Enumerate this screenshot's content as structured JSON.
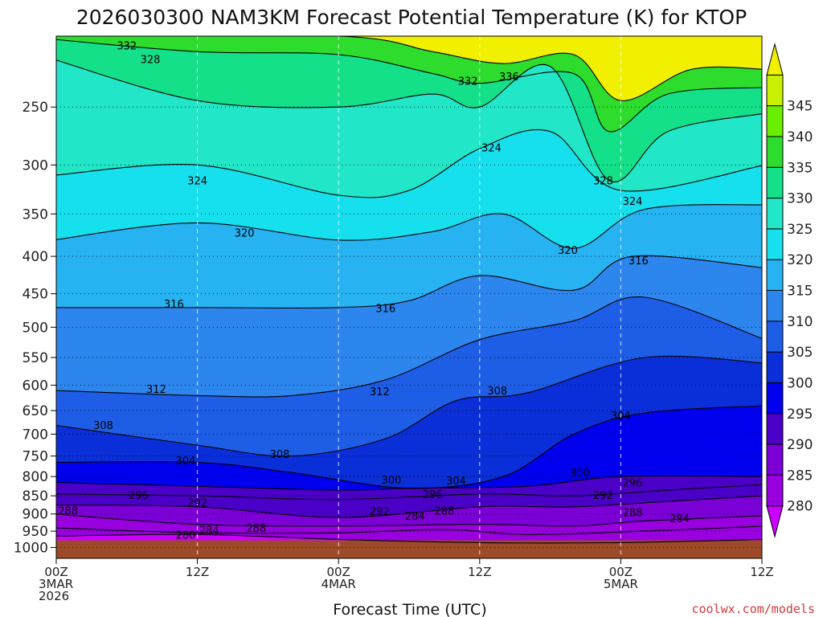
{
  "chart_data": {
    "type": "contour",
    "title": "2026030300 NAM3KM Forecast Potential Temperature (K) for KTOP",
    "xlabel": "Forecast Time (UTC)",
    "ylabel": "",
    "units": "K",
    "x_hours_range": [
      0,
      60
    ],
    "x_ticks": [
      {
        "hour": 0,
        "lines": [
          "00Z",
          "3MAR",
          "2026"
        ]
      },
      {
        "hour": 12,
        "lines": [
          "12Z"
        ]
      },
      {
        "hour": 24,
        "lines": [
          "00Z",
          "4MAR"
        ]
      },
      {
        "hour": 36,
        "lines": [
          "12Z"
        ]
      },
      {
        "hour": 48,
        "lines": [
          "00Z",
          "5MAR"
        ]
      },
      {
        "hour": 60,
        "lines": [
          "12Z"
        ]
      }
    ],
    "y_axis": {
      "variable": "pressure (hPa)",
      "scale": "log",
      "range": [
        1035,
        200
      ],
      "ticks": [
        250,
        300,
        350,
        400,
        450,
        500,
        550,
        600,
        650,
        700,
        750,
        800,
        850,
        900,
        950,
        1000
      ]
    },
    "surface_pressure_hPa": 978,
    "colorbar": {
      "levels": [
        280,
        285,
        290,
        295,
        300,
        305,
        310,
        315,
        320,
        325,
        330,
        335,
        340,
        345
      ],
      "colors": [
        "#cc00ff",
        "#9900e0",
        "#7a00d6",
        "#4b00c8",
        "#0000ee",
        "#0a2ed8",
        "#1e5ee6",
        "#2d86ee",
        "#27b2f2",
        "#16e0ee",
        "#22e6c8",
        "#14e08a",
        "#2ddc2d",
        "#6aee00",
        "#c8f000",
        "#f0f000"
      ]
    },
    "contour_interval": 4,
    "contour_levels": [
      280,
      284,
      288,
      292,
      296,
      300,
      304,
      308,
      312,
      316,
      320,
      324,
      328,
      332,
      336
    ],
    "series": [
      {
        "name": "280K",
        "values": [
          [
            0,
            965
          ],
          [
            12,
            960
          ],
          [
            24,
            975
          ],
          [
            36,
            985
          ],
          [
            48,
            985
          ],
          [
            60,
            975
          ]
        ]
      },
      {
        "name": "284K",
        "values": [
          [
            0,
            940
          ],
          [
            12,
            955
          ],
          [
            24,
            955
          ],
          [
            33,
            945
          ],
          [
            40,
            960
          ],
          [
            50,
            950
          ],
          [
            60,
            935
          ]
        ]
      },
      {
        "name": "288K",
        "values": [
          [
            0,
            900
          ],
          [
            12,
            930
          ],
          [
            24,
            935
          ],
          [
            36,
            930
          ],
          [
            44,
            935
          ],
          [
            50,
            920
          ],
          [
            60,
            905
          ]
        ]
      },
      {
        "name": "292K",
        "values": [
          [
            0,
            875
          ],
          [
            12,
            880
          ],
          [
            24,
            910
          ],
          [
            36,
            880
          ],
          [
            44,
            880
          ],
          [
            52,
            865
          ],
          [
            60,
            850
          ]
        ]
      },
      {
        "name": "296K",
        "values": [
          [
            0,
            845
          ],
          [
            12,
            850
          ],
          [
            24,
            860
          ],
          [
            36,
            845
          ],
          [
            44,
            850
          ],
          [
            52,
            835
          ],
          [
            60,
            820
          ]
        ]
      },
      {
        "name": "300K",
        "values": [
          [
            0,
            815
          ],
          [
            12,
            825
          ],
          [
            24,
            835
          ],
          [
            30,
            830
          ],
          [
            40,
            825
          ],
          [
            48,
            800
          ],
          [
            60,
            800
          ]
        ]
      },
      {
        "name": "304K",
        "values": [
          [
            0,
            765
          ],
          [
            12,
            765
          ],
          [
            20,
            790
          ],
          [
            30,
            830
          ],
          [
            38,
            800
          ],
          [
            44,
            700
          ],
          [
            50,
            655
          ],
          [
            60,
            640
          ]
        ]
      },
      {
        "name": "308K",
        "values": [
          [
            0,
            680
          ],
          [
            12,
            725
          ],
          [
            20,
            750
          ],
          [
            28,
            710
          ],
          [
            34,
            630
          ],
          [
            40,
            615
          ],
          [
            50,
            550
          ],
          [
            60,
            560
          ]
        ]
      },
      {
        "name": "312K",
        "values": [
          [
            0,
            610
          ],
          [
            12,
            620
          ],
          [
            20,
            620
          ],
          [
            28,
            590
          ],
          [
            36,
            520
          ],
          [
            44,
            490
          ],
          [
            50,
            455
          ],
          [
            60,
            520
          ]
        ]
      },
      {
        "name": "316K",
        "values": [
          [
            0,
            470
          ],
          [
            12,
            470
          ],
          [
            24,
            470
          ],
          [
            30,
            460
          ],
          [
            36,
            425
          ],
          [
            44,
            445
          ],
          [
            49,
            400
          ],
          [
            60,
            415
          ]
        ]
      },
      {
        "name": "320K",
        "values": [
          [
            0,
            380
          ],
          [
            12,
            360
          ],
          [
            24,
            380
          ],
          [
            32,
            370
          ],
          [
            38,
            350
          ],
          [
            44,
            390
          ],
          [
            50,
            345
          ],
          [
            60,
            340
          ]
        ]
      },
      {
        "name": "324K",
        "values": [
          [
            0,
            310
          ],
          [
            12,
            300
          ],
          [
            24,
            330
          ],
          [
            30,
            325
          ],
          [
            36,
            285
          ],
          [
            42,
            270
          ],
          [
            48,
            325
          ],
          [
            60,
            300
          ]
        ]
      },
      {
        "name": "328K",
        "values": [
          [
            0,
            215
          ],
          [
            12,
            245
          ],
          [
            24,
            250
          ],
          [
            32,
            240
          ],
          [
            36,
            250
          ],
          [
            42,
            220
          ],
          [
            47,
            315
          ],
          [
            52,
            270
          ],
          [
            60,
            255
          ]
        ]
      },
      {
        "name": "332K",
        "values": [
          [
            0,
            202
          ],
          [
            12,
            210
          ],
          [
            24,
            212
          ],
          [
            32,
            225
          ],
          [
            36,
            232
          ],
          [
            44,
            225
          ],
          [
            47,
            270
          ],
          [
            52,
            240
          ],
          [
            60,
            235
          ]
        ]
      },
      {
        "name": "336K",
        "values": [
          [
            24,
            200
          ],
          [
            32,
            210
          ],
          [
            38,
            218
          ],
          [
            44,
            212
          ],
          [
            48,
            245
          ],
          [
            54,
            222
          ],
          [
            60,
            222
          ]
        ]
      }
    ],
    "contour_labels": [
      {
        "text": "332",
        "hour": 6.0,
        "p": 206
      },
      {
        "text": "328",
        "hour": 8.0,
        "p": 215
      },
      {
        "text": "332",
        "hour": 35.0,
        "p": 230
      },
      {
        "text": "336",
        "hour": 38.5,
        "p": 227
      },
      {
        "text": "324",
        "hour": 37.0,
        "p": 284
      },
      {
        "text": "328",
        "hour": 46.5,
        "p": 315
      },
      {
        "text": "324",
        "hour": 12.0,
        "p": 315
      },
      {
        "text": "324",
        "hour": 49.0,
        "p": 336
      },
      {
        "text": "320",
        "hour": 16.0,
        "p": 371
      },
      {
        "text": "320",
        "hour": 43.5,
        "p": 392
      },
      {
        "text": "316",
        "hour": 49.5,
        "p": 405
      },
      {
        "text": "316",
        "hour": 10.0,
        "p": 464
      },
      {
        "text": "316",
        "hour": 28.0,
        "p": 471
      },
      {
        "text": "312",
        "hour": 8.5,
        "p": 607
      },
      {
        "text": "312",
        "hour": 27.5,
        "p": 612
      },
      {
        "text": "308",
        "hour": 37.5,
        "p": 610
      },
      {
        "text": "304",
        "hour": 48.0,
        "p": 660
      },
      {
        "text": "308",
        "hour": 4.0,
        "p": 680
      },
      {
        "text": "308",
        "hour": 19.0,
        "p": 745
      },
      {
        "text": "304",
        "hour": 11.0,
        "p": 760
      },
      {
        "text": "300",
        "hour": 44.5,
        "p": 790
      },
      {
        "text": "300",
        "hour": 28.5,
        "p": 808
      },
      {
        "text": "304",
        "hour": 34.0,
        "p": 810
      },
      {
        "text": "296",
        "hour": 49.0,
        "p": 815
      },
      {
        "text": "296",
        "hour": 7.0,
        "p": 848
      },
      {
        "text": "296",
        "hour": 32.0,
        "p": 845
      },
      {
        "text": "292",
        "hour": 12.0,
        "p": 868
      },
      {
        "text": "292",
        "hour": 46.5,
        "p": 848
      },
      {
        "text": "288",
        "hour": 1.0,
        "p": 890
      },
      {
        "text": "292",
        "hour": 27.5,
        "p": 892
      },
      {
        "text": "288",
        "hour": 33.0,
        "p": 890
      },
      {
        "text": "284",
        "hour": 30.5,
        "p": 905
      },
      {
        "text": "288",
        "hour": 49.0,
        "p": 895
      },
      {
        "text": "284",
        "hour": 53.0,
        "p": 912
      },
      {
        "text": "288",
        "hour": 17.0,
        "p": 940
      },
      {
        "text": "284",
        "hour": 13.0,
        "p": 946
      },
      {
        "text": "280",
        "hour": 11.0,
        "p": 960
      }
    ]
  },
  "credit": "coolwx.com/models"
}
